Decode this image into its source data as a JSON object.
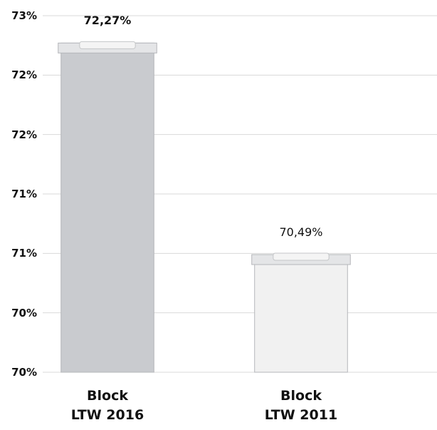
{
  "chart_data": {
    "type": "bar",
    "categories": [
      "Block\nLTW 2016",
      "Block\nLTW 2011"
    ],
    "values": [
      72.27,
      70.49
    ],
    "value_labels": [
      "72,27%",
      "70,49%"
    ],
    "colors": [
      "#c9cbcf",
      "#f1f1f1"
    ],
    "ylim": [
      69.5,
      72.5
    ],
    "yticks": [
      {
        "value": 69.5,
        "label": "70%"
      },
      {
        "value": 70,
        "label": "70%"
      },
      {
        "value": 70.5,
        "label": "71%"
      },
      {
        "value": 71,
        "label": "71%"
      },
      {
        "value": 71.5,
        "label": "72%"
      },
      {
        "value": 72,
        "label": "72%"
      },
      {
        "value": 72.5,
        "label": "73%"
      }
    ],
    "grid": true
  }
}
